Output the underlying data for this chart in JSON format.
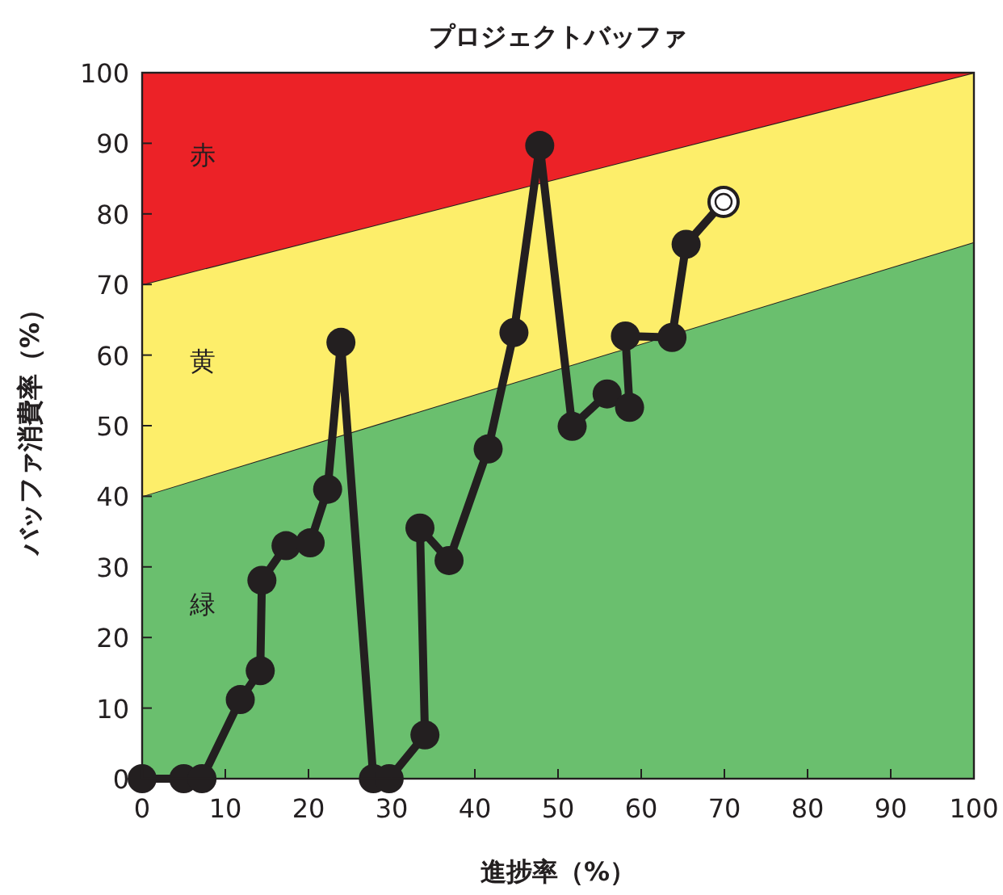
{
  "chart_data": {
    "type": "line",
    "title": "プロジェクトバッファ",
    "xlabel": "進捗率（%）",
    "ylabel": "バッファ消費率（%）",
    "xlim": [
      0,
      100
    ],
    "ylim": [
      0,
      100
    ],
    "xticks": [
      0,
      10,
      20,
      30,
      40,
      50,
      60,
      70,
      80,
      90,
      100
    ],
    "yticks": [
      0,
      10,
      20,
      30,
      40,
      50,
      60,
      70,
      80,
      90,
      100
    ],
    "stacked": true,
    "series": [
      {
        "name": "緑",
        "type": "area",
        "color": "#6abf6e",
        "x": [
          0,
          100
        ],
        "values": [
          40,
          76
        ]
      },
      {
        "name": "黄",
        "type": "area",
        "color": "#fdee6a",
        "x": [
          0,
          100
        ],
        "values": [
          30,
          24
        ]
      },
      {
        "name": "赤",
        "type": "area",
        "color": "#ec2227",
        "x": [
          0,
          100
        ],
        "values": [
          30,
          0
        ]
      },
      {
        "marker": "circle",
        "color": "#231f20",
        "x": [
          0,
          5,
          7.2,
          11.8,
          14.2,
          14.4,
          17.3,
          20.2,
          22.3,
          23.9,
          27.8,
          29.7,
          34,
          33.4,
          36.9,
          41.6,
          44.7,
          47.8,
          51.7,
          55.9,
          58.6,
          58.1,
          63.7,
          65.4,
          69.9
        ],
        "values": [
          0,
          0,
          0,
          11.2,
          15.3,
          28.1,
          33,
          33.4,
          41,
          61.8,
          0,
          0,
          6.2,
          35.5,
          30.9,
          46.7,
          63.2,
          89.7,
          49.9,
          54.5,
          52.6,
          62.7,
          62.5,
          75.7,
          81.7
        ]
      },
      {
        "type": "scatter",
        "color": "#ffffff",
        "x": [
          69.9
        ],
        "values": [
          81.7
        ]
      }
    ]
  }
}
